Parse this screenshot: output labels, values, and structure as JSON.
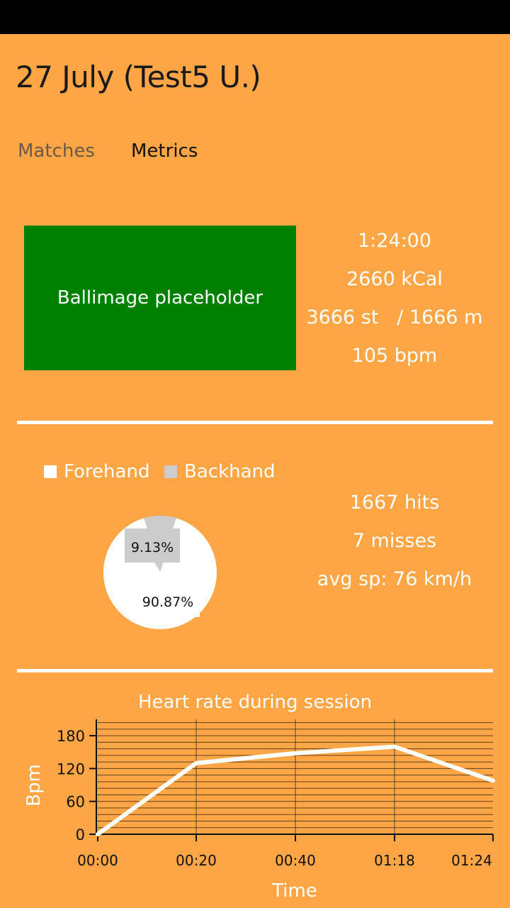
{
  "page": {
    "title": "27 July (Test5 U.)"
  },
  "tabs": [
    {
      "label": "Matches",
      "selected": false
    },
    {
      "label": "Metrics",
      "selected": true
    }
  ],
  "ball_image": {
    "label": "Ballimage placeholder"
  },
  "stats": {
    "duration": "1:24:00",
    "calories": "2660 kCal",
    "steps_distance": "3666 st   / 1666 m",
    "heart_rate": "105 bpm"
  },
  "shots": {
    "legend": [
      {
        "label": "Forehand",
        "color": "#FFFFFF"
      },
      {
        "label": "Backhand",
        "color": "#CCCCCC"
      }
    ],
    "forehand_pct_label": "90.87%",
    "backhand_pct_label": "9.13%",
    "hits": "1667 hits",
    "misses": "7 misses",
    "avg_speed": "avg sp: 76 km/h"
  },
  "chart_data": [
    {
      "type": "pie",
      "labels": [
        "Forehand",
        "Backhand"
      ],
      "values": [
        90.87,
        9.13
      ],
      "colors": [
        "#FFFFFF",
        "#CCCCCC"
      ]
    },
    {
      "type": "line",
      "title": "Heart rate during session",
      "xlabel": "Time",
      "ylabel": "Bpm",
      "x": [
        "00:00",
        "00:20",
        "00:40",
        "01:18",
        "01:24"
      ],
      "series": [
        {
          "values": [
            0,
            130,
            148,
            160,
            98
          ]
        }
      ],
      "ylim": [
        0,
        210
      ],
      "yticks": [
        0,
        60,
        120,
        180
      ],
      "grid": true
    }
  ]
}
